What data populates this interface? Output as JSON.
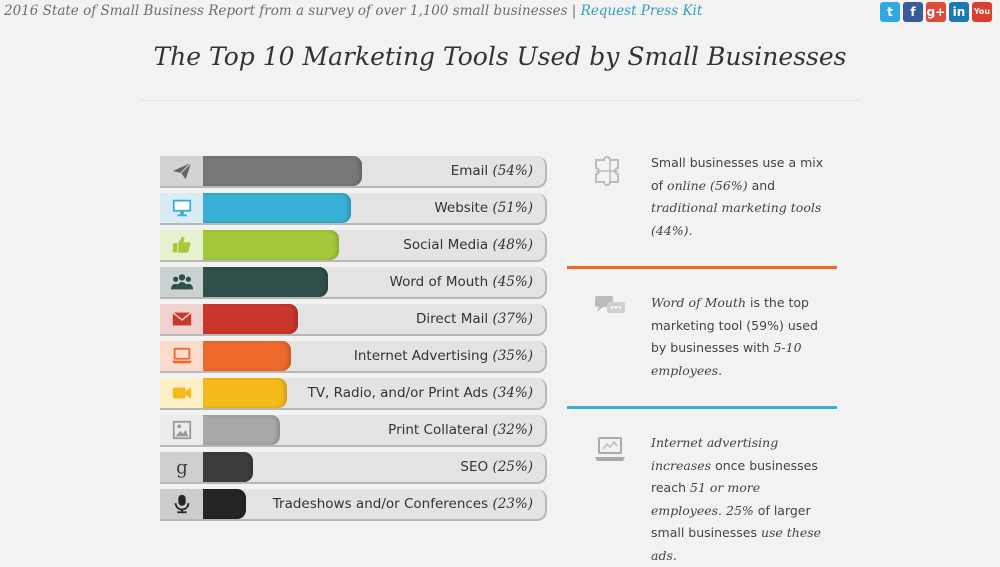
{
  "header": {
    "source_text": "2016 State of Small Business Report from a survey of over 1,100 small businesses |",
    "press_link": "Request Press Kit",
    "social": [
      {
        "name": "twitter-icon",
        "glyph": "t",
        "color": "#2fa9e0"
      },
      {
        "name": "facebook-icon",
        "glyph": "f",
        "color": "#3b5a9a"
      },
      {
        "name": "google-plus-icon",
        "glyph": "g+",
        "color": "#dd4b39"
      },
      {
        "name": "linkedin-icon",
        "glyph": "in",
        "color": "#1e79b0"
      },
      {
        "name": "youtube-icon",
        "glyph": "You",
        "color": "#d9412e"
      }
    ]
  },
  "title": "The Top 10 Marketing Tools Used by Small Businesses",
  "chart_data": {
    "type": "bar",
    "orientation": "horizontal",
    "title": "The Top 10 Marketing Tools Used by Small Businesses",
    "unit": "%",
    "xlim": [
      0,
      100
    ],
    "categories": [
      "Email",
      "Website",
      "Social Media",
      "Word of Mouth",
      "Direct Mail",
      "Internet Advertising",
      "TV, Radio, and/or Print Ads",
      "Print Collateral",
      "SEO",
      "Tradeshows and/or Conferences"
    ],
    "values": [
      54,
      51,
      48,
      45,
      37,
      35,
      34,
      32,
      25,
      23
    ],
    "labels": [
      "(54%)",
      "(51%)",
      "(48%)",
      "(45%)",
      "(37%)",
      "(35%)",
      "(34%)",
      "(32%)",
      "(25%)",
      "(23%)"
    ],
    "colors": [
      "#777777",
      "#3aafd6",
      "#a3c93a",
      "#2f4f4b",
      "#c9372c",
      "#ee6a2c",
      "#f5bb1d",
      "#a8a8a8",
      "#3c3c3c",
      "#252525"
    ],
    "icon_colors": [
      "#666666",
      "#3aafd6",
      "#a3c93a",
      "#2f4f4b",
      "#c9372c",
      "#ee6a2c",
      "#f5bb1d",
      "#999999",
      "#3c3c3c",
      "#252525"
    ],
    "icon_bgs": [
      "#d3d3d3",
      "#d7ecf4",
      "#e7f0cf",
      "#c9d2d1",
      "#f0d2cf",
      "#fbdccc",
      "#fdf0c6",
      "#ececec",
      "#cfcfcf",
      "#cccccc"
    ],
    "icons": [
      "paper-plane-icon",
      "monitor-icon",
      "thumbs-up-icon",
      "people-group-icon",
      "envelope-icon",
      "laptop-icon",
      "video-camera-icon",
      "image-icon",
      "google-icon",
      "microphone-icon"
    ]
  },
  "sidebar": {
    "box1": {
      "l1": "Small businesses use a mix",
      "l2a": "of",
      "l2b": "online (56%)",
      "l2c": "and",
      "l3": "traditional marketing tools",
      "l4": "(44%)",
      "l4b": ".",
      "icon": "puzzle-icon"
    },
    "divider1_color": "#ee6a2c",
    "box2": {
      "l1a": "Word of Mouth",
      "l1b": "is the top",
      "l2": "marketing tool (59%) used",
      "l3": "by businesses with",
      "l3b": "5-10",
      "l4": "employees",
      "l4b": ".",
      "icon": "chat-bubbles-icon"
    },
    "divider2_color": "#3aafd6",
    "box3": {
      "l1": "Internet advertising",
      "l2a": "increases",
      "l2b": "once businesses",
      "l3a": "reach",
      "l3b": "51 or more",
      "l4a": "employees.",
      "l4b": "25%",
      "l4c": "of larger",
      "l5a": "small businesses",
      "l5b": "use these",
      "l6": "ads.",
      "icon": "laptop-outline-icon"
    }
  }
}
